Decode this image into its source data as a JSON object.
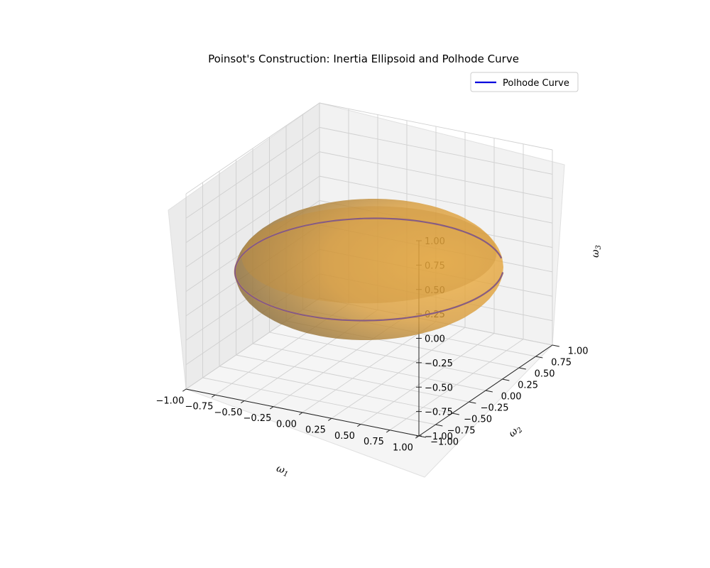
{
  "chart_data": {
    "type": "3d-surface-line",
    "title": "Poinsot's Construction: Inertia Ellipsoid and Polhode Curve",
    "xlabel": "ω1",
    "ylabel": "ω2",
    "zlabel": "ω3",
    "xlim": [
      -1.0,
      1.0
    ],
    "ylim": [
      -1.0,
      1.0
    ],
    "zlim": [
      -1.0,
      1.0
    ],
    "ticks": [
      "−1.00",
      "−0.75",
      "−0.50",
      "−0.25",
      "0.00",
      "0.25",
      "0.50",
      "0.75",
      "1.00"
    ],
    "grid": true,
    "legend": {
      "location": "upper right",
      "entries": [
        {
          "label": "Polhode Curve",
          "color": "#0000dd"
        }
      ]
    },
    "ellipsoid": {
      "semi_axes": [
        1.0,
        1.0,
        0.5
      ],
      "color": "#f2a93b",
      "alpha": 0.8
    },
    "polhode": {
      "color": "#0000dd",
      "radius": 1.0,
      "z": 0.0,
      "angle_start_deg": 40,
      "angle_end_deg": 385
    }
  }
}
